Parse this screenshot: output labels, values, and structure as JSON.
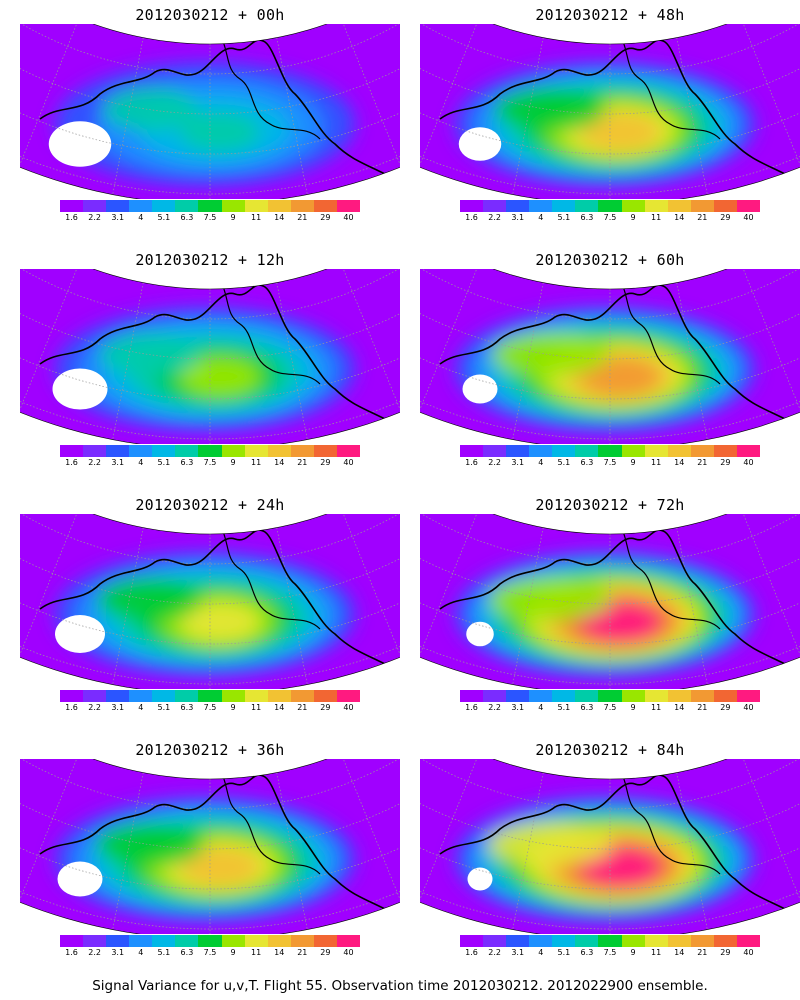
{
  "panels": [
    {
      "title": "2012030212 + 00h",
      "intensity": 0.15
    },
    {
      "title": "2012030212 + 48h",
      "intensity": 0.55
    },
    {
      "title": "2012030212 + 12h",
      "intensity": 0.3
    },
    {
      "title": "2012030212 + 60h",
      "intensity": 0.7
    },
    {
      "title": "2012030212 + 24h",
      "intensity": 0.4
    },
    {
      "title": "2012030212 + 72h",
      "intensity": 0.85
    },
    {
      "title": "2012030212 + 36h",
      "intensity": 0.5
    },
    {
      "title": "2012030212 + 84h",
      "intensity": 0.9
    }
  ],
  "colorbar": {
    "labels": [
      "1.6",
      "2.2",
      "3.1",
      "4",
      "5.1",
      "6.3",
      "7.5",
      "9",
      "11",
      "14",
      "21",
      "29",
      "40"
    ],
    "colors": [
      "#a000ff",
      "#7a2cff",
      "#2b55ff",
      "#1e90ff",
      "#00b8e6",
      "#00cca8",
      "#00cc33",
      "#99e600",
      "#e6e633",
      "#f2c233",
      "#f29933",
      "#f26633",
      "#ff1a80"
    ]
  },
  "caption": "Signal Variance for u,v,T. Flight 55. Observation time 2012030212. 2012022900 ensemble."
}
